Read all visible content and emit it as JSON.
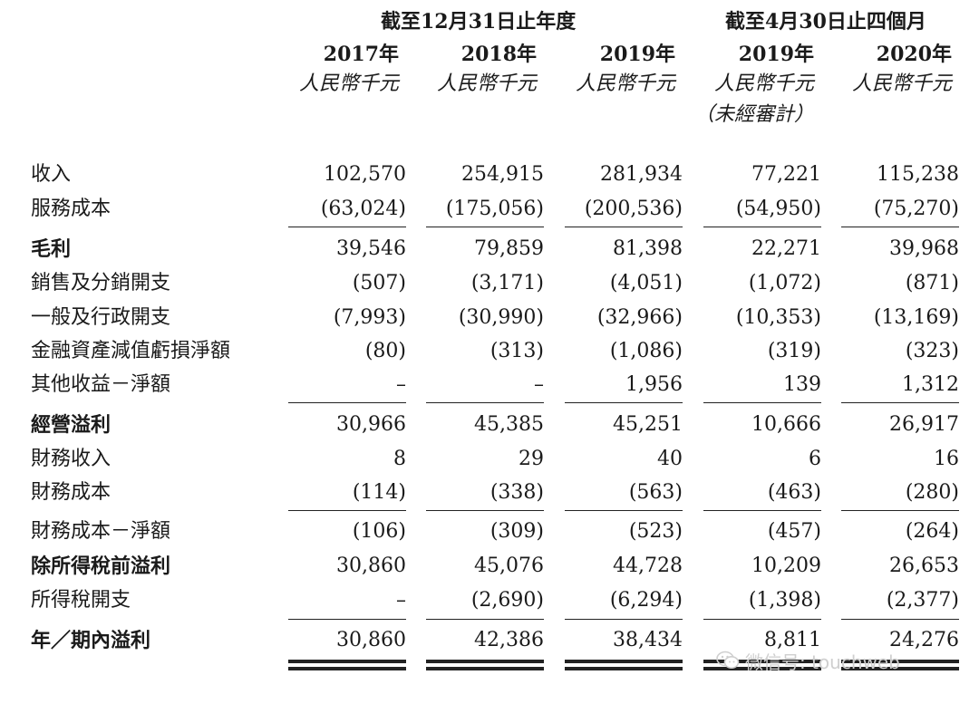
{
  "header": {
    "group_fy": "截至12月31日止年度",
    "group_4m": "截至4月30日止四個月",
    "columns": [
      {
        "year": "2017年",
        "unit": "人民幣千元",
        "note": ""
      },
      {
        "year": "2018年",
        "unit": "人民幣千元",
        "note": ""
      },
      {
        "year": "2019年",
        "unit": "人民幣千元",
        "note": ""
      },
      {
        "year": "2019年",
        "unit": "人民幣千元",
        "note": "（未經審計）"
      },
      {
        "year": "2020年",
        "unit": "人民幣千元",
        "note": ""
      }
    ]
  },
  "rows": [
    {
      "label": "收入",
      "bold": false,
      "values": [
        "102,570",
        "254,915",
        "281,934",
        "77,221",
        "115,238"
      ]
    },
    {
      "label": "服務成本",
      "bold": false,
      "values": [
        "(63,024)",
        "(175,056)",
        "(200,536)",
        "(54,950)",
        "(75,270)"
      ]
    },
    {
      "label": "毛利",
      "bold": true,
      "values": [
        "39,546",
        "79,859",
        "81,398",
        "22,271",
        "39,968"
      ]
    },
    {
      "label": "銷售及分銷開支",
      "bold": false,
      "values": [
        "(507)",
        "(3,171)",
        "(4,051)",
        "(1,072)",
        "(871)"
      ]
    },
    {
      "label": "一般及行政開支",
      "bold": false,
      "values": [
        "(7,993)",
        "(30,990)",
        "(32,966)",
        "(10,353)",
        "(13,169)"
      ]
    },
    {
      "label": "金融資產減值虧損淨額",
      "bold": false,
      "values": [
        "(80)",
        "(313)",
        "(1,086)",
        "(319)",
        "(323)"
      ]
    },
    {
      "label": "其他收益－淨額",
      "bold": false,
      "values": [
        "–",
        "–",
        "1,956",
        "139",
        "1,312"
      ]
    },
    {
      "label": "經營溢利",
      "bold": true,
      "values": [
        "30,966",
        "45,385",
        "45,251",
        "10,666",
        "26,917"
      ]
    },
    {
      "label": "財務收入",
      "bold": false,
      "values": [
        "8",
        "29",
        "40",
        "6",
        "16"
      ]
    },
    {
      "label": "財務成本",
      "bold": false,
      "values": [
        "(114)",
        "(338)",
        "(563)",
        "(463)",
        "(280)"
      ]
    },
    {
      "label": "財務成本－淨額",
      "bold": false,
      "values": [
        "(106)",
        "(309)",
        "(523)",
        "(457)",
        "(264)"
      ]
    },
    {
      "label": "除所得稅前溢利",
      "bold": true,
      "values": [
        "30,860",
        "45,076",
        "44,728",
        "10,209",
        "26,653"
      ]
    },
    {
      "label": "所得稅開支",
      "bold": false,
      "values": [
        "–",
        "(2,690)",
        "(6,294)",
        "(1,398)",
        "(2,377)"
      ]
    },
    {
      "label": "年／期內溢利",
      "bold": true,
      "values": [
        "30,860",
        "42,386",
        "38,434",
        "8,811",
        "24,276"
      ]
    }
  ],
  "watermark": {
    "text": "微信号: touchweb",
    "icon": "wechat-icon"
  }
}
